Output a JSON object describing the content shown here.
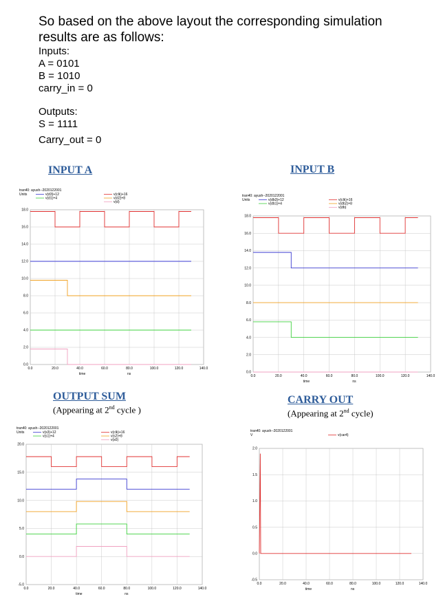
{
  "intro": {
    "lead": "So based on the above layout the corresponding simulation results are as follows:",
    "inputs_label": "Inputs:",
    "a_line": "A =  0101",
    "b_line": "B =  1010",
    "carry_in_line": "carry_in = 0",
    "outputs_label": "Outputs:",
    "s_line": "S = 1111",
    "carry_out_line": "Carry_out = 0"
  },
  "captions": {
    "input_a": "INPUT A",
    "input_b": "INPUT B",
    "output_sum": "OUTPUT SUM",
    "output_sum_note_pre": "(Appearing at 2",
    "output_sum_note_sup": "nd",
    "output_sum_note_post": " cycle )",
    "carry_out": "CARRY OUT",
    "carry_out_note_pre": "(Appearing at 2",
    "carry_out_note_sup": "nd",
    "carry_out_note_post": " cycle)"
  },
  "chart_data": [
    {
      "type": "line",
      "id": "input_a",
      "header": "tran40: ayush--2020122001",
      "units_label": "Units",
      "xlabel": "time",
      "xunit": "ns",
      "xlim": [
        0,
        140
      ],
      "ylim": [
        0,
        18
      ],
      "xticks": [
        "0.0",
        "20.0",
        "40.0",
        "60.0",
        "80.0",
        "100.0",
        "120.0",
        "140.0"
      ],
      "yticks": [
        "0.0",
        "2.0",
        "4.0",
        "6.0",
        "8.0",
        "10.0",
        "12.0",
        "14.0",
        "16.0",
        "18.0"
      ],
      "series": [
        {
          "name": "v(d3)+12",
          "color": "#3a3ad0",
          "points": [
            [
              0,
              12
            ],
            [
              130,
              12
            ]
          ]
        },
        {
          "name": "v(d1)+4",
          "color": "#3cd03c",
          "points": [
            [
              0,
              4
            ],
            [
              130,
              4
            ]
          ]
        },
        {
          "name": "v(clk)+16",
          "color": "#e03030",
          "points": [
            [
              0,
              17.8
            ],
            [
              20,
              17.8
            ],
            [
              20,
              16
            ],
            [
              40,
              16
            ],
            [
              40,
              17.8
            ],
            [
              60,
              17.8
            ],
            [
              60,
              16
            ],
            [
              80,
              16
            ],
            [
              80,
              17.8
            ],
            [
              100,
              17.8
            ],
            [
              100,
              16
            ],
            [
              120,
              16
            ],
            [
              120,
              17.8
            ],
            [
              130,
              17.8
            ]
          ]
        },
        {
          "name": "v(d2)+8",
          "color": "#f0a020",
          "points": [
            [
              0,
              9.8
            ],
            [
              30,
              9.8
            ],
            [
              30,
              8
            ],
            [
              130,
              8
            ]
          ]
        },
        {
          "name": "v(d)",
          "color": "#f0a0c0",
          "points": [
            [
              0,
              1.8
            ],
            [
              30,
              1.8
            ],
            [
              30,
              0
            ],
            [
              130,
              0
            ]
          ]
        }
      ]
    },
    {
      "type": "line",
      "id": "input_b",
      "header": "tran40: ayush--2020122001",
      "units_label": "Units",
      "xlabel": "time",
      "xunit": "ns",
      "xlim": [
        0,
        140
      ],
      "ylim": [
        0,
        18
      ],
      "xticks": [
        "0.0",
        "20.0",
        "40.0",
        "60.0",
        "80.0",
        "100.0",
        "120.0",
        "140.0"
      ],
      "yticks": [
        "0.0",
        "2.0",
        "4.0",
        "6.0",
        "8.0",
        "10.0",
        "12.0",
        "14.0",
        "16.0",
        "18.0"
      ],
      "series": [
        {
          "name": "v(db3)+12",
          "color": "#3a3ad0",
          "points": [
            [
              0,
              13.8
            ],
            [
              30,
              13.8
            ],
            [
              30,
              12
            ],
            [
              130,
              12
            ]
          ]
        },
        {
          "name": "v(db1)+4",
          "color": "#3cd03c",
          "points": [
            [
              0,
              5.8
            ],
            [
              30,
              5.8
            ],
            [
              30,
              4
            ],
            [
              130,
              4
            ]
          ]
        },
        {
          "name": "v(clk)+16",
          "color": "#e03030",
          "points": [
            [
              0,
              17.8
            ],
            [
              20,
              17.8
            ],
            [
              20,
              16
            ],
            [
              40,
              16
            ],
            [
              40,
              17.8
            ],
            [
              60,
              17.8
            ],
            [
              60,
              16
            ],
            [
              80,
              16
            ],
            [
              80,
              17.8
            ],
            [
              100,
              17.8
            ],
            [
              100,
              16
            ],
            [
              120,
              16
            ],
            [
              120,
              17.8
            ],
            [
              130,
              17.8
            ]
          ]
        },
        {
          "name": "v(db2)+8",
          "color": "#f0a020",
          "points": [
            [
              0,
              8
            ],
            [
              130,
              8
            ]
          ]
        },
        {
          "name": "v(db)",
          "color": "#f0a0c0",
          "points": [
            [
              0,
              0
            ],
            [
              130,
              0
            ]
          ]
        }
      ]
    },
    {
      "type": "line",
      "id": "output_sum",
      "header": "tran40: ayush--2020122001",
      "units_label": "Units",
      "xlabel": "time",
      "xunit": "ns",
      "xlim": [
        0,
        140
      ],
      "ylim": [
        -5,
        20
      ],
      "xticks": [
        "0.0",
        "20.0",
        "40.0",
        "60.0",
        "80.0",
        "100.0",
        "120.0",
        "140.0"
      ],
      "yticks": [
        "-5.0",
        "0.0",
        "5.0",
        "10.0",
        "15.0",
        "20.0"
      ],
      "series": [
        {
          "name": "v(s3)+12",
          "color": "#3a3ad0",
          "points": [
            [
              0,
              12
            ],
            [
              40,
              12
            ],
            [
              40,
              13.8
            ],
            [
              80,
              13.8
            ],
            [
              80,
              12
            ],
            [
              130,
              12
            ]
          ]
        },
        {
          "name": "v(s1)+4",
          "color": "#3cd03c",
          "points": [
            [
              0,
              4
            ],
            [
              40,
              4
            ],
            [
              40,
              5.8
            ],
            [
              80,
              5.8
            ],
            [
              80,
              4
            ],
            [
              130,
              4
            ]
          ]
        },
        {
          "name": "v(clk)+16",
          "color": "#e03030",
          "points": [
            [
              0,
              17.8
            ],
            [
              20,
              17.8
            ],
            [
              20,
              16
            ],
            [
              40,
              16
            ],
            [
              40,
              17.8
            ],
            [
              60,
              17.8
            ],
            [
              60,
              16
            ],
            [
              80,
              16
            ],
            [
              80,
              17.8
            ],
            [
              100,
              17.8
            ],
            [
              100,
              16
            ],
            [
              120,
              16
            ],
            [
              120,
              17.8
            ],
            [
              130,
              17.8
            ]
          ]
        },
        {
          "name": "v(s2)+8",
          "color": "#f0a020",
          "points": [
            [
              0,
              8
            ],
            [
              40,
              8
            ],
            [
              40,
              9.8
            ],
            [
              80,
              9.8
            ],
            [
              80,
              8
            ],
            [
              130,
              8
            ]
          ]
        },
        {
          "name": "v(s0)",
          "color": "#f0a0c0",
          "points": [
            [
              0,
              0
            ],
            [
              40,
              0
            ],
            [
              40,
              1.8
            ],
            [
              80,
              1.8
            ],
            [
              80,
              0
            ],
            [
              130,
              0
            ]
          ]
        }
      ]
    },
    {
      "type": "line",
      "id": "carry_out",
      "header": "tran40: ayush--2020122001",
      "units_label": "V",
      "xlabel": "time",
      "xunit": "ns",
      "xlim": [
        0,
        140
      ],
      "ylim": [
        -0.5,
        2.0
      ],
      "xticks": [
        "0.0",
        "20.0",
        "40.0",
        "60.0",
        "80.0",
        "100.0",
        "120.0",
        "140.0"
      ],
      "yticks": [
        "-0.5",
        "0.0",
        "0.5",
        "1.0",
        "1.5",
        "2.0"
      ],
      "series": [
        {
          "name": "v(car4)",
          "color": "#e03030",
          "points": [
            [
              0,
              0
            ],
            [
              0.8,
              1.9
            ],
            [
              1.2,
              0
            ],
            [
              130,
              0
            ]
          ]
        }
      ]
    }
  ]
}
